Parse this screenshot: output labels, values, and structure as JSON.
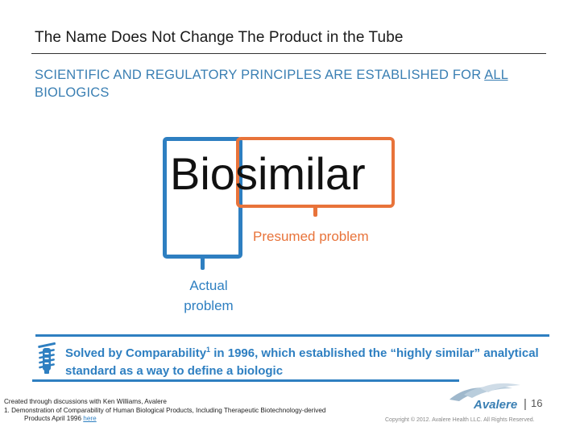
{
  "slide": {
    "title": "The Name Does Not Change The Product in the Tube",
    "subtitle_part1": "SCIENTIFIC AND REGULATORY PRINCIPLES ARE ESTABLISHED FOR ",
    "subtitle_underlined": "ALL",
    "subtitle_part2": " BIOLOGICS"
  },
  "diagram": {
    "word": "Biosimilar",
    "presumed_label": "Presumed problem",
    "actual_label": "Actual problem",
    "colors": {
      "blue": "#2e7fc1",
      "orange": "#e8733a"
    }
  },
  "callout": {
    "icon": "beaker-icon",
    "text_part1": "Solved by Comparability",
    "superscript": "1",
    "text_part2": " in 1996, which established the “highly similar” analytical standard as a way to define a biologic"
  },
  "footer": {
    "note_line1": "Created through discussions with Ken Williams, Avalere",
    "note_line2": "1. Demonstration of Comparability of Human Biological Products, Including Therapeutic Biotechnology-derived",
    "note_line3": "Products April 1996 ",
    "note_link": "here",
    "logo_text": "Avalere",
    "page_separator": "|",
    "page_number": "16",
    "copyright": "Copyright © 2012. Avalere Health LLC. All Rights Reserved."
  }
}
